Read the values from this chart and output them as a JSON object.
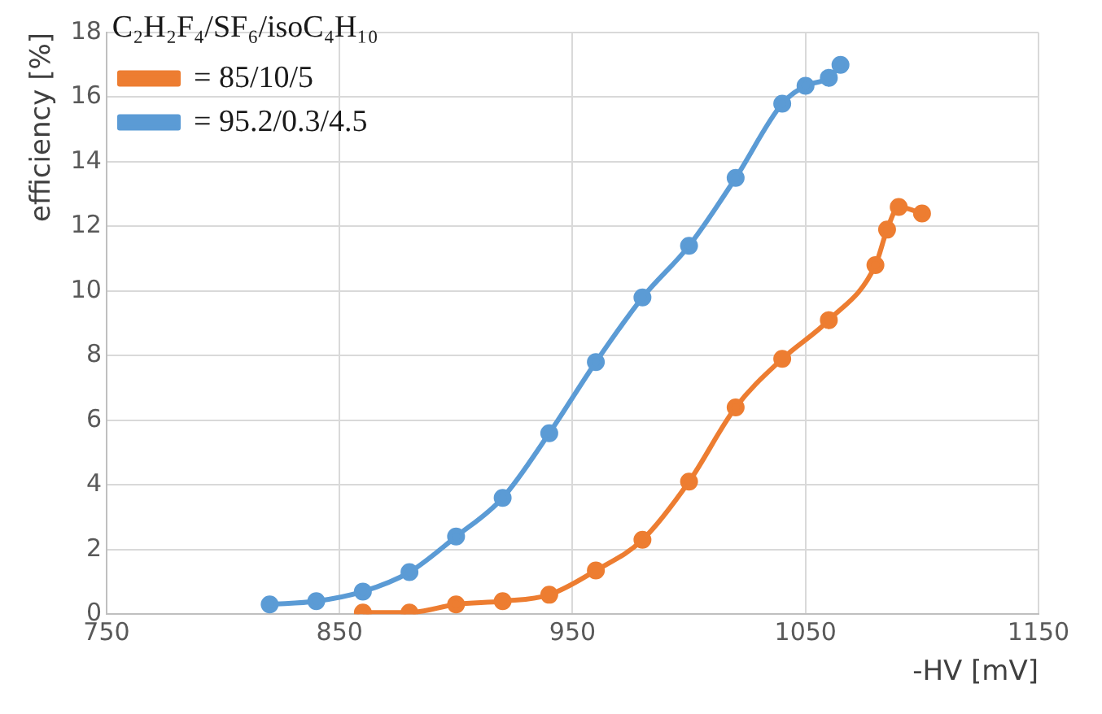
{
  "chart_data": {
    "type": "line",
    "xlabel": "-HV [mV]",
    "ylabel": "efficiency [%]",
    "legend_title": "C₂H₂F₄/SF₆/isoC₄H₁₀",
    "series": [
      {
        "name": "= 85/10/5",
        "color": "#ed7d31",
        "x": [
          860,
          880,
          900,
          920,
          940,
          960,
          980,
          1000,
          1020,
          1040,
          1060,
          1080,
          1085,
          1090,
          1100
        ],
        "values": [
          0.05,
          0.05,
          0.3,
          0.4,
          0.6,
          1.35,
          2.3,
          4.1,
          6.4,
          7.9,
          9.1,
          10.8,
          11.9,
          12.6,
          12.4
        ]
      },
      {
        "name": "= 95.2/0.3/4.5",
        "color": "#5b9bd5",
        "x": [
          820,
          840,
          860,
          880,
          900,
          920,
          940,
          960,
          980,
          1000,
          1020,
          1040,
          1050,
          1060,
          1065
        ],
        "values": [
          0.3,
          0.4,
          0.7,
          1.3,
          2.4,
          3.6,
          5.6,
          7.8,
          9.8,
          11.4,
          13.5,
          15.8,
          16.35,
          16.6,
          17.0
        ]
      }
    ],
    "xlim": [
      750,
      1150
    ],
    "xticks": [
      750,
      850,
      950,
      1050,
      1150
    ],
    "ylim": [
      0,
      18
    ],
    "yticks": [
      0,
      2,
      4,
      6,
      8,
      10,
      12,
      14,
      16,
      18
    ],
    "grid": true,
    "legend": "top left",
    "marker": "circle",
    "line_style": "solid"
  }
}
